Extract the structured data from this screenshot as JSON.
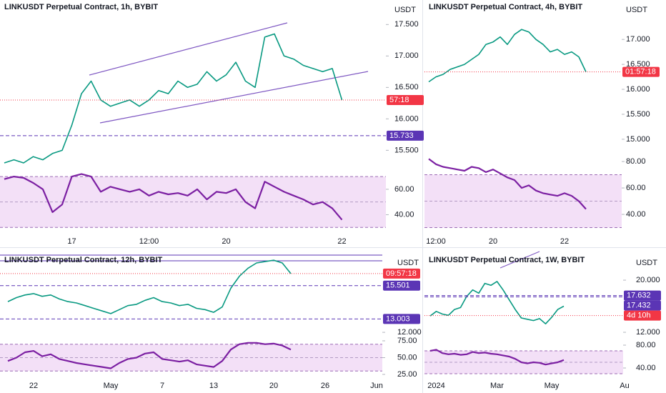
{
  "chart_data": [
    {
      "type": "line",
      "title": "LINKUSDT Perpetual Contract, 1h, BYBIT",
      "currency": "USDT",
      "categories": [
        null,
        null,
        null,
        null,
        null,
        null,
        null,
        "17",
        null,
        null,
        null,
        null,
        null,
        null,
        null,
        "12:00",
        null,
        null,
        null,
        null,
        null,
        null,
        null,
        "20",
        null,
        null,
        null,
        null,
        null,
        null,
        null,
        null,
        null,
        null,
        null,
        "22"
      ],
      "values": [
        15.3,
        15.35,
        15.3,
        15.4,
        15.35,
        15.45,
        15.5,
        15.9,
        16.4,
        16.6,
        16.3,
        16.2,
        16.25,
        16.3,
        16.2,
        16.3,
        16.45,
        16.4,
        16.6,
        16.5,
        16.55,
        16.75,
        16.6,
        16.7,
        16.9,
        16.6,
        16.5,
        17.3,
        17.35,
        17.0,
        16.95,
        16.85,
        16.8,
        16.75,
        16.8,
        16.3
      ],
      "rsi": [
        68,
        70,
        69,
        65,
        60,
        42,
        48,
        70,
        72,
        70,
        58,
        62,
        60,
        58,
        60,
        55,
        58,
        56,
        57,
        55,
        60,
        52,
        58,
        57,
        60,
        50,
        45,
        66,
        62,
        58,
        55,
        52,
        48,
        50,
        45,
        36
      ],
      "color": "#089981",
      "rsi_color": "#7b1fa2",
      "rsi_band": [
        70,
        30
      ],
      "ylim": [
        15.22,
        17.89
      ],
      "yticks": [
        {
          "value": 17.5,
          "label": "17.500"
        },
        {
          "value": 17,
          "label": "17.000"
        },
        {
          "value": 16.5,
          "label": "16.500"
        },
        {
          "value": 16,
          "label": "16.000"
        },
        {
          "value": 15.5,
          "label": "15.500"
        }
      ],
      "rsi_ylim": [
        29,
        74
      ],
      "rsi_yticks": [
        {
          "value": 60,
          "label": "60.00"
        },
        {
          "value": 40,
          "label": "40.00"
        }
      ],
      "levels": [
        15.733
      ],
      "level_color": "#5b35b5",
      "countdown": "57:18",
      "countdown_color": "#f23645"
    },
    {
      "type": "line",
      "title": "LINKUSDT Perpetual Contract, 4h, BYBIT",
      "currency": "USDT",
      "categories": [
        null,
        "12:00",
        null,
        null,
        null,
        null,
        null,
        null,
        null,
        "20",
        null,
        null,
        null,
        null,
        null,
        null,
        null,
        null,
        null,
        "22",
        null,
        null,
        null
      ],
      "values": [
        16.15,
        16.25,
        16.3,
        16.4,
        16.45,
        16.5,
        16.6,
        16.7,
        16.9,
        16.95,
        17.05,
        16.9,
        17.1,
        17.2,
        17.15,
        17.0,
        16.9,
        16.75,
        16.8,
        16.7,
        16.75,
        16.65,
        16.35
      ],
      "rsi": [
        82,
        78,
        76,
        75,
        74,
        73,
        76,
        75,
        72,
        74,
        71,
        68,
        66,
        60,
        62,
        58,
        56,
        55,
        54,
        56,
        54,
        50,
        44
      ],
      "color": "#089981",
      "rsi_color": "#7b1fa2",
      "rsi_band": [
        70,
        30
      ],
      "ylim": [
        14.64,
        17.79
      ],
      "yticks": [
        {
          "value": 17,
          "label": "17.000"
        },
        {
          "value": 16.5,
          "label": "16.500"
        },
        {
          "value": 16,
          "label": "16.000"
        },
        {
          "value": 15.5,
          "label": "15.500"
        },
        {
          "value": 15,
          "label": "15.000"
        }
      ],
      "rsi_ylim": [
        29.2,
        82.2
      ],
      "rsi_yticks": [
        {
          "value": 80,
          "label": "80.00"
        },
        {
          "value": 60,
          "label": "60.00"
        },
        {
          "value": 40,
          "label": "40.00"
        }
      ],
      "levels": [],
      "level_color": "#5b35b5",
      "countdown": "01:57:18",
      "countdown_color": "#f23645"
    },
    {
      "type": "line",
      "title": "LINKUSDT Perpetual Contract, 12h, BYBIT",
      "currency": "USDT",
      "categories": [
        null,
        null,
        null,
        "22",
        null,
        null,
        null,
        null,
        null,
        null,
        null,
        null,
        "May",
        null,
        null,
        null,
        null,
        null,
        "7",
        null,
        null,
        null,
        null,
        null,
        "13",
        null,
        null,
        null,
        null,
        null,
        null,
        "20",
        null,
        null,
        null,
        null,
        null,
        "26",
        null,
        null,
        null,
        null,
        null,
        "Jun"
      ],
      "values": [
        14.3,
        14.6,
        14.8,
        14.9,
        14.7,
        14.8,
        14.5,
        14.3,
        14.2,
        14.0,
        13.8,
        13.6,
        13.4,
        13.7,
        14.0,
        14.1,
        14.4,
        14.6,
        14.3,
        14.2,
        14.0,
        14.1,
        13.8,
        13.7,
        13.5,
        13.9,
        15.3,
        16.2,
        16.8,
        17.2,
        17.3,
        17.4,
        17.2,
        16.4,
        null,
        null,
        null,
        null,
        null,
        null,
        null,
        null,
        null,
        null
      ],
      "rsi": [
        45,
        50,
        58,
        60,
        52,
        55,
        48,
        45,
        42,
        40,
        38,
        36,
        34,
        42,
        48,
        50,
        56,
        58,
        48,
        46,
        44,
        46,
        40,
        38,
        36,
        45,
        62,
        70,
        72,
        72,
        70,
        71,
        68,
        62,
        null,
        null,
        null,
        null,
        null,
        null,
        null,
        null,
        null,
        null
      ],
      "color": "#089981",
      "rsi_color": "#7b1fa2",
      "rsi_band": [
        70,
        30
      ],
      "ylim": [
        11.63,
        17.84
      ],
      "yticks": [
        {
          "value": 12,
          "label": "12.000"
        }
      ],
      "rsi_ylim": [
        20.7,
        78.2
      ],
      "rsi_yticks": [
        {
          "value": 75,
          "label": "75.00"
        },
        {
          "value": 50,
          "label": "50.00"
        },
        {
          "value": 25,
          "label": "25.00"
        }
      ],
      "levels": [
        15.501,
        13.003
      ],
      "level_color": "#5b35b5",
      "countdown": "09:57:18",
      "countdown_color": "#f23645"
    },
    {
      "type": "line",
      "title": "LINKUSDT Perpetual Contract, 1W, BYBIT",
      "currency": "USDT",
      "categories": [
        null,
        "2024",
        null,
        null,
        null,
        null,
        null,
        null,
        null,
        null,
        null,
        "Mar",
        null,
        null,
        null,
        null,
        null,
        null,
        null,
        null,
        "May",
        null,
        null,
        null,
        null,
        null,
        null,
        null,
        null,
        null,
        null,
        null,
        "Au"
      ],
      "values": [
        14.5,
        15.2,
        14.8,
        14.6,
        15.5,
        15.8,
        17.5,
        18.5,
        18.0,
        19.5,
        19.2,
        19.8,
        18.5,
        17.0,
        15.5,
        14.2,
        14.0,
        13.8,
        14.1,
        13.3,
        14.3,
        15.5,
        16.0,
        null,
        null,
        null,
        null,
        null,
        null,
        null,
        null,
        null,
        null
      ],
      "rsi": [
        70,
        72,
        66,
        64,
        65,
        63,
        64,
        68,
        66,
        67,
        65,
        64,
        62,
        60,
        56,
        50,
        48,
        50,
        49,
        46,
        48,
        50,
        54,
        null,
        null,
        null,
        null,
        null,
        null,
        null,
        null,
        null,
        null
      ],
      "color": "#089981",
      "rsi_color": "#7b1fa2",
      "rsi_band": [
        70,
        30
      ],
      "ylim": [
        10.36,
        23.95
      ],
      "yticks": [
        {
          "value": 20,
          "label": "20.000"
        },
        {
          "value": 12,
          "label": "12.000"
        }
      ],
      "rsi_ylim": [
        26.25,
        76.25
      ],
      "rsi_yticks": [
        {
          "value": 80,
          "label": "80.00"
        },
        {
          "value": 40,
          "label": "40.00"
        }
      ],
      "levels": [
        17.632,
        17.432
      ],
      "level_color": "#5b35b5",
      "countdown": "4d 10h",
      "countdown_color": "#f23645"
    }
  ]
}
